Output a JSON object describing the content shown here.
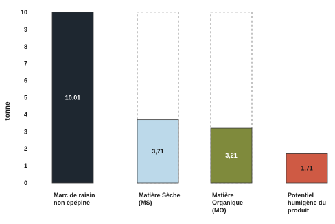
{
  "chart_data": {
    "type": "bar",
    "ylabel": "tonne",
    "ylim": [
      0,
      10
    ],
    "yticks": [
      0,
      1,
      2,
      3,
      4,
      5,
      6,
      7,
      8,
      9,
      10
    ],
    "grid": false,
    "categories": [
      [
        "Marc de raisin",
        "non épépiné"
      ],
      [
        "Matière Sèche",
        "(MS)"
      ],
      [
        "Matière",
        "Organique",
        "(MO)"
      ],
      [
        "Potentiel",
        "humigène du",
        "produit"
      ]
    ],
    "values": [
      10.01,
      3.71,
      3.21,
      1.71
    ],
    "data_labels": [
      "10.01",
      "3,71",
      "3,21",
      "1,71"
    ],
    "bar_colors": [
      "#1e2730",
      "#bcd9ea",
      "#7f8a3c",
      "#cf5a44"
    ],
    "label_colors": [
      "#ffffff",
      "#1a1a1a",
      "#ffffff",
      "#1a1a1a"
    ],
    "reference_outlines": [
      null,
      10.01,
      10.01,
      null
    ]
  }
}
